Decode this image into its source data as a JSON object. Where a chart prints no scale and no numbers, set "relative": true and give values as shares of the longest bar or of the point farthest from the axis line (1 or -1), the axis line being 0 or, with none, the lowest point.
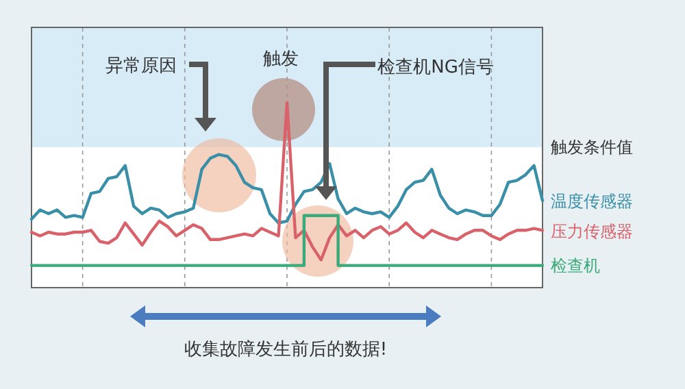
{
  "chart_data": {
    "type": "line",
    "relative": true,
    "grid": "x",
    "categories": [
      null,
      null,
      null,
      null,
      null,
      null,
      null,
      null,
      null,
      null,
      null,
      null,
      null,
      null,
      null,
      null,
      null,
      null,
      null,
      null,
      null,
      null,
      null,
      null,
      null,
      null,
      null,
      null,
      null,
      null,
      null,
      null,
      null,
      null,
      null,
      null,
      null,
      null,
      null,
      null,
      null,
      null,
      null,
      null,
      null,
      null,
      null,
      null,
      null,
      null,
      null,
      null,
      null,
      null,
      null,
      null,
      null,
      null,
      null,
      null,
      null
    ],
    "bands": [
      {
        "axis": "y",
        "from": 0.76,
        "to": 1.41,
        "label": "触发条件值",
        "color": "#d8ecf8"
      }
    ],
    "series": [
      {
        "name": "温度传感器",
        "color": "#3a8fa8",
        "values": [
          0.37,
          0.42,
          0.4,
          0.42,
          0.38,
          0.39,
          0.38,
          0.51,
          0.52,
          0.59,
          0.6,
          0.66,
          0.44,
          0.4,
          0.43,
          0.42,
          0.38,
          0.4,
          0.41,
          0.43,
          0.64,
          0.7,
          0.72,
          0.71,
          0.66,
          0.57,
          0.54,
          0.53,
          0.4,
          0.35,
          0.36,
          0.45,
          0.52,
          0.53,
          0.57,
          0.67,
          0.48,
          0.4,
          0.43,
          0.41,
          0.4,
          0.41,
          0.38,
          0.44,
          0.53,
          0.57,
          0.58,
          0.64,
          0.5,
          0.43,
          0.4,
          0.42,
          0.41,
          0.39,
          0.39,
          0.45,
          0.57,
          0.58,
          0.61,
          0.66,
          0.47
        ]
      },
      {
        "name": "压力传感器",
        "color": "#d9626a",
        "values": [
          0.3,
          0.28,
          0.3,
          0.29,
          0.29,
          0.3,
          0.3,
          0.31,
          0.25,
          0.24,
          0.27,
          0.35,
          0.29,
          0.23,
          0.3,
          0.36,
          0.33,
          0.28,
          0.31,
          0.34,
          0.32,
          0.26,
          0.26,
          0.27,
          0.28,
          0.29,
          0.28,
          0.32,
          0.3,
          0.28,
          1.0,
          0.27,
          0.31,
          0.22,
          0.15,
          0.27,
          0.34,
          0.28,
          0.31,
          0.27,
          0.31,
          0.33,
          0.29,
          0.31,
          0.35,
          0.3,
          0.27,
          0.31,
          0.29,
          0.27,
          0.26,
          0.29,
          0.31,
          0.31,
          0.28,
          0.26,
          0.29,
          0.31,
          0.31,
          0.32,
          0.31
        ]
      },
      {
        "name": "检查机",
        "color": "#3aaa7a",
        "type": "step",
        "values": [
          0.12,
          0.12,
          0.12,
          0.12,
          0.12,
          0.12,
          0.12,
          0.12,
          0.12,
          0.12,
          0.12,
          0.12,
          0.12,
          0.12,
          0.12,
          0.12,
          0.12,
          0.12,
          0.12,
          0.12,
          0.12,
          0.12,
          0.12,
          0.12,
          0.12,
          0.12,
          0.12,
          0.12,
          0.12,
          0.12,
          0.12,
          0.12,
          0.39,
          0.39,
          0.39,
          0.39,
          0.12,
          0.12,
          0.12,
          0.12,
          0.12,
          0.12,
          0.12,
          0.12,
          0.12,
          0.12,
          0.12,
          0.12,
          0.12,
          0.12,
          0.12,
          0.12,
          0.12,
          0.12,
          0.12,
          0.12,
          0.12,
          0.12,
          0.12,
          0.12,
          0.12
        ]
      }
    ],
    "annotations": [
      "异常原因",
      "触发",
      "检查机NG信号",
      "收集故障发生前后的数据!"
    ]
  }
}
